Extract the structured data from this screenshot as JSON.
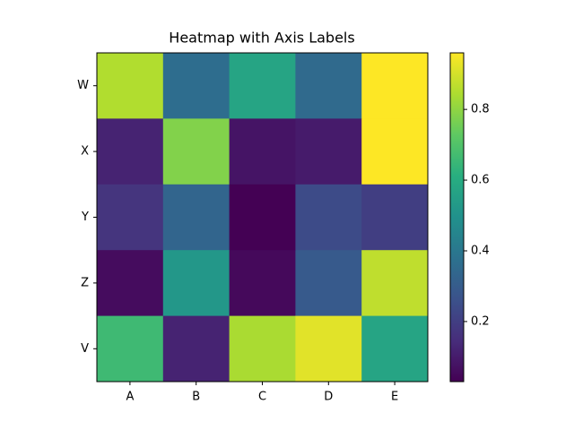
{
  "chart_data": {
    "type": "heatmap",
    "title": "Heatmap with Axis Labels",
    "x_categories": [
      "A",
      "B",
      "C",
      "D",
      "E"
    ],
    "y_categories": [
      "W",
      "X",
      "Y",
      "Z",
      "V"
    ],
    "values": [
      [
        0.85,
        0.36,
        0.57,
        0.35,
        0.96
      ],
      [
        0.12,
        0.78,
        0.08,
        0.1,
        0.96
      ],
      [
        0.17,
        0.33,
        0.03,
        0.24,
        0.2
      ],
      [
        0.06,
        0.52,
        0.05,
        0.29,
        0.87
      ],
      [
        0.66,
        0.12,
        0.84,
        0.92,
        0.57
      ]
    ],
    "colormap": "viridis",
    "zlim": [
      0.03,
      0.96
    ],
    "zticks": [
      0.2,
      0.4,
      0.6,
      0.8
    ]
  }
}
